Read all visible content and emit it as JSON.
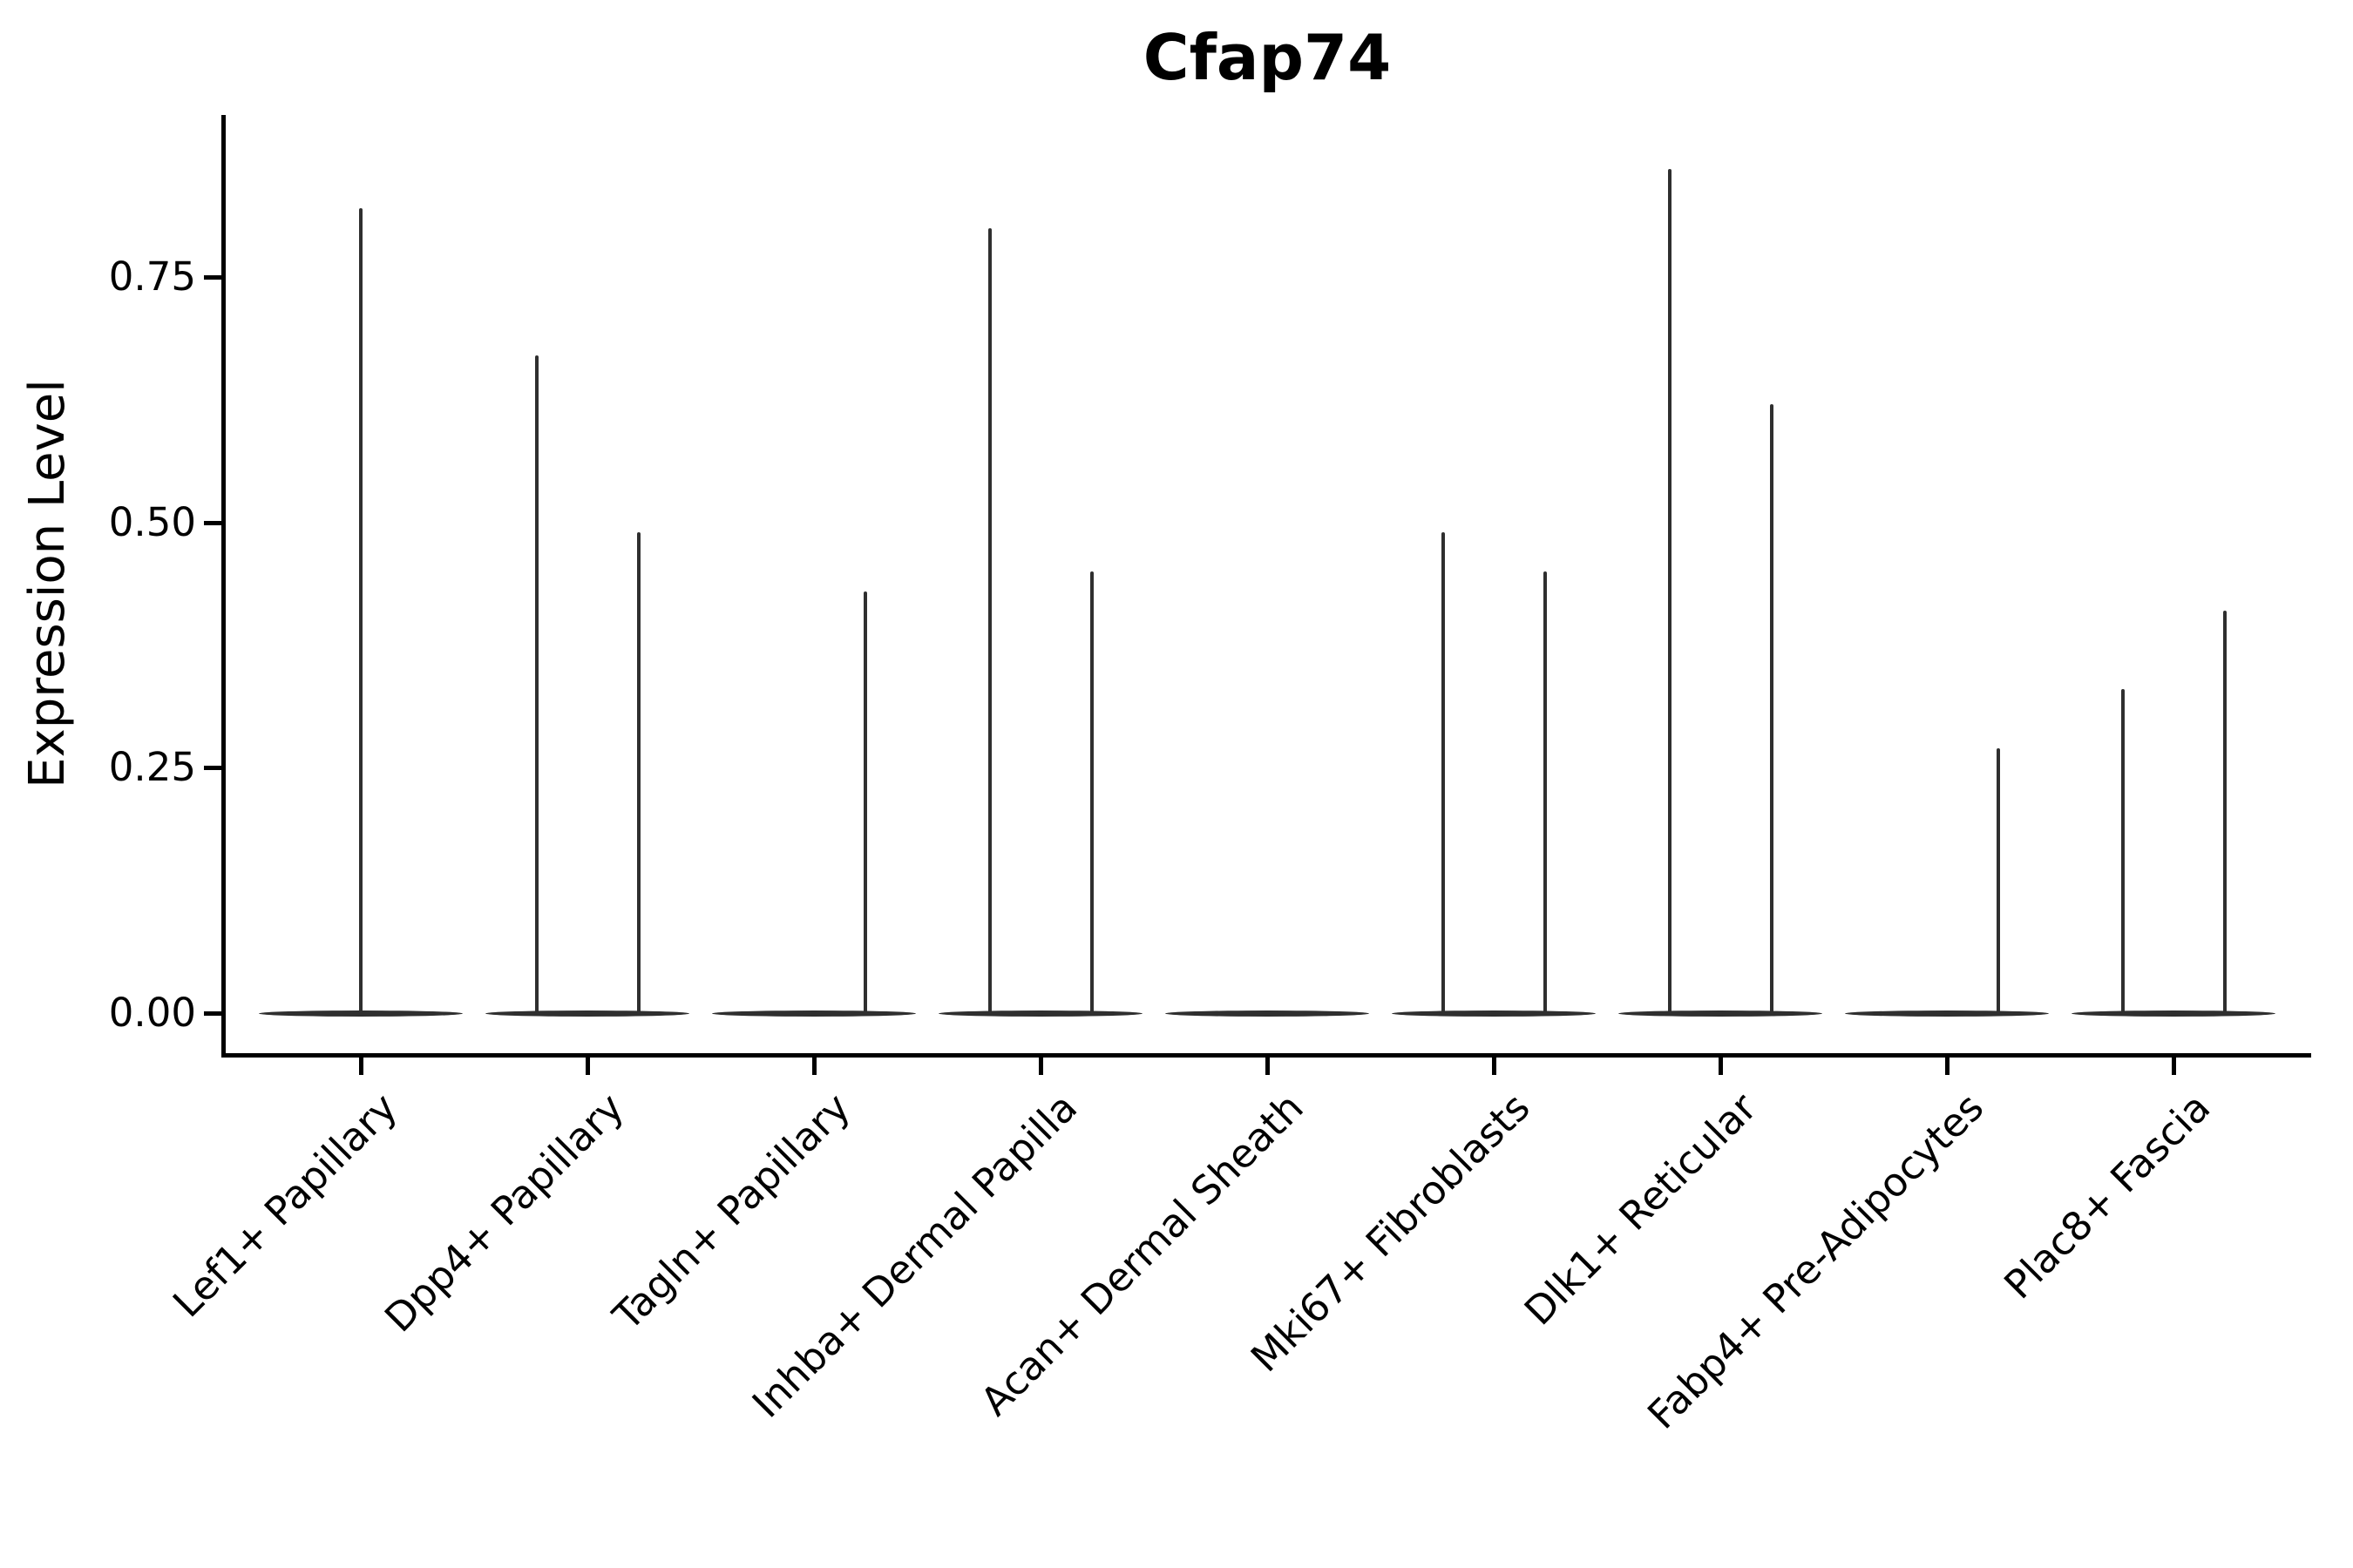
{
  "chart_data": {
    "type": "violin",
    "title": "Cfap74",
    "xlabel": "",
    "ylabel": "Expression Level",
    "ylim": [
      -0.04,
      0.92
    ],
    "yticks": {
      "values": [
        0.0,
        0.25,
        0.5,
        0.75
      ],
      "labels": [
        "0.00",
        "0.25",
        "0.50",
        "0.75"
      ]
    },
    "grid": false,
    "legend": "none",
    "violin_color": "#2f2f2f",
    "axis_color": "#000000",
    "background_color": "#ffffff",
    "categories": [
      "Lef1+ Papillary",
      "Dpp4+ Papillary",
      "Tagln+ Papillary",
      "Inhba+ Dermal Papilla",
      "Acan+ Dermal Sheath",
      "Mki67+ Fibroblasts",
      "Dlk1+ Reticular",
      "Fabp4+ Pre-Adipocytes",
      "Plac8+ Fascia"
    ],
    "series": [
      {
        "category": "Lef1+ Papillary",
        "violins": [
          {
            "position": "center",
            "max_expression": 0.82
          }
        ]
      },
      {
        "category": "Dpp4+ Papillary",
        "violins": [
          {
            "position": "left",
            "max_expression": 0.67
          },
          {
            "position": "right",
            "max_expression": 0.49
          }
        ]
      },
      {
        "category": "Tagln+ Papillary",
        "violins": [
          {
            "position": "left",
            "max_expression": 0.0
          },
          {
            "position": "right",
            "max_expression": 0.43
          }
        ]
      },
      {
        "category": "Inhba+ Dermal Papilla",
        "violins": [
          {
            "position": "left",
            "max_expression": 0.8
          },
          {
            "position": "right",
            "max_expression": 0.45
          }
        ]
      },
      {
        "category": "Acan+ Dermal Sheath",
        "violins": [
          {
            "position": "center",
            "max_expression": 0.0
          }
        ]
      },
      {
        "category": "Mki67+ Fibroblasts",
        "violins": [
          {
            "position": "left",
            "max_expression": 0.49
          },
          {
            "position": "right",
            "max_expression": 0.45
          }
        ]
      },
      {
        "category": "Dlk1+ Reticular",
        "violins": [
          {
            "position": "left",
            "max_expression": 0.86
          },
          {
            "position": "right",
            "max_expression": 0.62
          }
        ]
      },
      {
        "category": "Fabp4+ Pre-Adipocytes",
        "violins": [
          {
            "position": "left",
            "max_expression": 0.0
          },
          {
            "position": "right",
            "max_expression": 0.27
          }
        ]
      },
      {
        "category": "Plac8+ Fascia",
        "violins": [
          {
            "position": "left",
            "max_expression": 0.33
          },
          {
            "position": "right",
            "max_expression": 0.41
          }
        ]
      }
    ]
  }
}
